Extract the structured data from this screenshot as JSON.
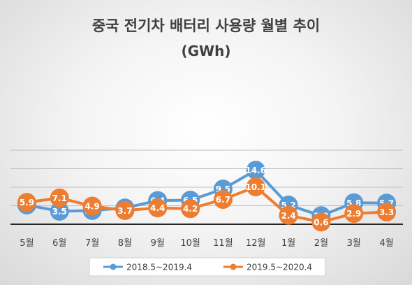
{
  "chart_data": {
    "type": "line",
    "title": "중국 전기차 배터리 사용량 월별 추이",
    "subtitle": "(GWh)",
    "categories": [
      "5월",
      "6월",
      "7월",
      "8월",
      "9월",
      "10월",
      "11월",
      "12월",
      "1월",
      "2월",
      "3월",
      "4월"
    ],
    "series": [
      {
        "name": "2018.5~2019.4",
        "color": "#5b9bd5",
        "values": [
          5.2,
          3.5,
          3.7,
          4.4,
          6.4,
          6.5,
          9.5,
          14.6,
          5.2,
          2.3,
          5.8,
          5.7
        ]
      },
      {
        "name": "2019.5~2020.4",
        "color": "#ed7d31",
        "values": [
          5.9,
          7.1,
          4.9,
          3.7,
          4.4,
          4.2,
          6.7,
          10.1,
          2.4,
          0.6,
          2.9,
          3.3
        ]
      }
    ],
    "ylim": [
      0,
      20
    ],
    "grid": true,
    "legend": "bottom"
  }
}
